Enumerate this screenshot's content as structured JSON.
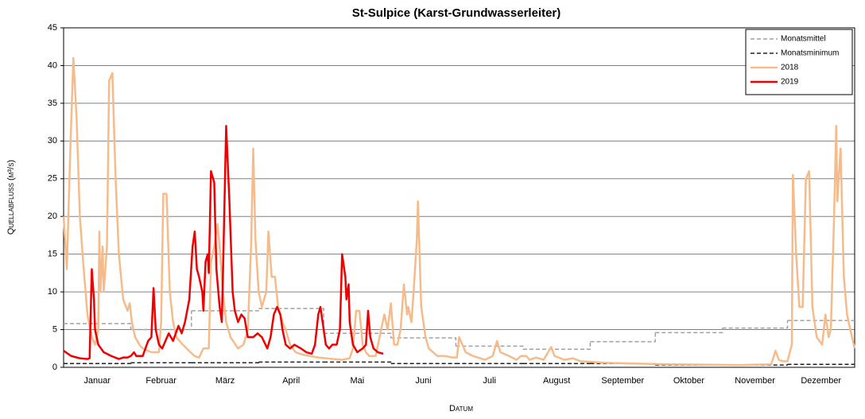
{
  "chart_data": {
    "type": "line",
    "title": "St-Sulpice (Karst-Grundwasserleiter)",
    "x_label": "Datum",
    "y_label": "Quellabfluss (m³/s)",
    "xlim": [
      0,
      365
    ],
    "xticks": [
      {
        "value": 15.5,
        "label": "Januar"
      },
      {
        "value": 45,
        "label": "Februar"
      },
      {
        "value": 74.5,
        "label": "März"
      },
      {
        "value": 105,
        "label": "April"
      },
      {
        "value": 135.5,
        "label": "Mai"
      },
      {
        "value": 166,
        "label": "Juni"
      },
      {
        "value": 196.5,
        "label": "Juli"
      },
      {
        "value": 227.5,
        "label": "August"
      },
      {
        "value": 258,
        "label": "September"
      },
      {
        "value": 288.5,
        "label": "Oktober"
      },
      {
        "value": 319,
        "label": "November"
      },
      {
        "value": 349.5,
        "label": "Dezember"
      }
    ],
    "ylim": [
      0,
      45
    ],
    "yticks": [
      0,
      5,
      10,
      15,
      20,
      25,
      30,
      35,
      40,
      45
    ],
    "grid": true,
    "legend": "top-right",
    "series": [
      {
        "name": "Monatsmittel",
        "color": "#a0a0a0",
        "line_style": "dashed",
        "step": true,
        "width": 1.5,
        "x": [
          0,
          31,
          59,
          90,
          120,
          151,
          181,
          212,
          243,
          273,
          304,
          334
        ],
        "values": [
          5.8,
          5.0,
          7.5,
          7.8,
          4.5,
          3.9,
          2.8,
          2.4,
          3.4,
          4.6,
          5.2,
          6.2
        ]
      },
      {
        "name": "Monatsminimum",
        "color": "#222222",
        "line_style": "dashed",
        "step": true,
        "width": 1.5,
        "x": [
          0,
          31,
          59,
          90,
          120,
          151,
          181,
          212,
          243,
          273,
          304,
          334
        ],
        "values": [
          0.5,
          0.6,
          0.6,
          0.7,
          0.7,
          0.5,
          0.5,
          0.5,
          0.5,
          0.3,
          0.3,
          0.4
        ]
      },
      {
        "name": "2018",
        "color": "#f6bb8a",
        "line_style": "solid",
        "step": false,
        "width": 2.5,
        "x": [
          0,
          1.5,
          3,
          4.5,
          6,
          7.5,
          9,
          11,
          13,
          14.5,
          16,
          16.5,
          17,
          18,
          18.5,
          20,
          21,
          22.5,
          24,
          25.5,
          27.5,
          29.5,
          30.5,
          31.5,
          33,
          35,
          36.5,
          40.5,
          44,
          45,
          46,
          47.5,
          49,
          50.5,
          52,
          55,
          58.5,
          60.5,
          62.5,
          64.5,
          67,
          68,
          69.5,
          71,
          72,
          73.5,
          75,
          77,
          80.5,
          83,
          85,
          86.5,
          87.5,
          88.5,
          90,
          91.5,
          93.5,
          94.5,
          96,
          97.5,
          99,
          101,
          102.5,
          104.5,
          107,
          110,
          113.5,
          117.5,
          121,
          124.5,
          128.5,
          132,
          133.5,
          135,
          136.5,
          138,
          139.5,
          141,
          144,
          146.5,
          148,
          149.5,
          151,
          152.5,
          154,
          155.5,
          157,
          158.5,
          159,
          160.5,
          161.5,
          163,
          163.5,
          165,
          167,
          168.5,
          172.5,
          176,
          179.5,
          181.5,
          182.5,
          184,
          185.5,
          189,
          194.5,
          198,
          200,
          201.5,
          205.5,
          209,
          211,
          213.5,
          215,
          218,
          221.5,
          225,
          226.5,
          231,
          235,
          238.5,
          249.5,
          264,
          279,
          293.5,
          312,
          326.5,
          328.5,
          330,
          332,
          334,
          336,
          336.5,
          338,
          339.5,
          341,
          342.5,
          344,
          345.5,
          347.5,
          350,
          351.5,
          353,
          354,
          355.5,
          356.5,
          357,
          358.5,
          360,
          361.5,
          363,
          365
        ],
        "values": [
          20,
          13,
          28,
          41,
          33,
          20,
          14,
          7,
          4,
          3,
          5,
          18,
          10,
          16,
          10,
          16,
          38,
          39,
          25,
          15,
          9,
          7.5,
          8.5,
          6,
          4,
          3,
          2.5,
          2,
          2,
          6,
          23,
          23,
          10,
          6,
          4,
          3,
          2,
          1.5,
          1.3,
          2.5,
          2.5,
          14,
          16,
          19,
          16,
          10,
          6,
          4,
          2.5,
          3,
          5,
          16,
          29,
          17,
          10,
          8,
          10,
          18,
          12,
          12,
          8,
          6,
          5,
          3,
          2,
          1.7,
          1.5,
          1.3,
          1.2,
          1.1,
          1.0,
          1.2,
          2.5,
          7.5,
          7.5,
          3,
          2,
          1.5,
          1.5,
          5,
          7,
          5,
          8.5,
          3,
          3,
          5,
          11,
          7,
          8,
          6,
          10,
          17,
          22,
          8,
          4,
          2.5,
          1.5,
          1.5,
          1.3,
          1.3,
          4,
          3,
          2,
          1.5,
          1,
          1.5,
          3.5,
          2,
          1.5,
          1,
          1.5,
          1.5,
          1,
          1.3,
          1,
          2.7,
          1.5,
          1,
          1.2,
          0.8,
          0.6,
          0.5,
          0.4,
          0.35,
          0.3,
          0.4,
          2.2,
          1,
          0.8,
          0.8,
          3,
          25.5,
          15,
          8,
          8,
          25,
          26,
          8,
          4,
          3,
          7,
          4,
          5,
          20,
          32,
          22,
          29,
          12,
          7,
          5,
          2.5
        ]
      },
      {
        "name": "2019",
        "color": "#ee0000",
        "line_style": "solid",
        "step": false,
        "width": 2.5,
        "x": [
          0,
          3.5,
          7.5,
          11,
          12,
          13,
          14,
          14.5,
          16,
          18.5,
          22,
          25.5,
          27.5,
          29.5,
          31,
          32.5,
          33.5,
          36.5,
          39,
          40.5,
          41.5,
          42.5,
          44,
          45.5,
          47,
          48.5,
          50.5,
          53,
          54.5,
          56,
          58,
          59.5,
          60.5,
          61.5,
          62.5,
          64,
          64.5,
          65.5,
          66.5,
          67,
          68,
          69.5,
          70.5,
          72,
          73,
          73.5,
          75,
          76.5,
          78,
          79,
          80.5,
          82,
          83.5,
          85,
          87.5,
          89.5,
          91.5,
          94,
          95.5,
          97,
          98.5,
          100,
          101,
          102.5,
          104.5,
          106.5,
          109.5,
          112,
          114.5,
          116,
          117.5,
          118.5,
          119.5,
          121,
          122.5,
          124,
          126,
          127.5,
          128.5,
          130,
          130.5,
          131.5,
          132,
          133.5,
          135.5,
          138,
          139.5,
          140.5,
          141.5,
          143,
          145,
          147.5
        ],
        "values": [
          2.2,
          1.5,
          1.2,
          1.1,
          1.2,
          13,
          9,
          5,
          3,
          2,
          1.5,
          1.1,
          1.3,
          1.3,
          1.5,
          2,
          1.5,
          1.5,
          3.5,
          4,
          10.5,
          5,
          3,
          2.5,
          3.5,
          4.5,
          3.5,
          5.5,
          4.5,
          6,
          9,
          16,
          18,
          13,
          12,
          10,
          7.5,
          14,
          15,
          12.5,
          26,
          24.5,
          13,
          8,
          6,
          12,
          32,
          22,
          10,
          7.5,
          6,
          7,
          6.5,
          4,
          4,
          4.5,
          4,
          2.5,
          4,
          7,
          8,
          7,
          5,
          3,
          2.5,
          3,
          2.5,
          2,
          1.8,
          3,
          7,
          8,
          6,
          3,
          2.5,
          3,
          3,
          5,
          15,
          12,
          9,
          11,
          6,
          3,
          2,
          2.5,
          3,
          7.5,
          4,
          2.5,
          2,
          1.8
        ]
      }
    ]
  }
}
